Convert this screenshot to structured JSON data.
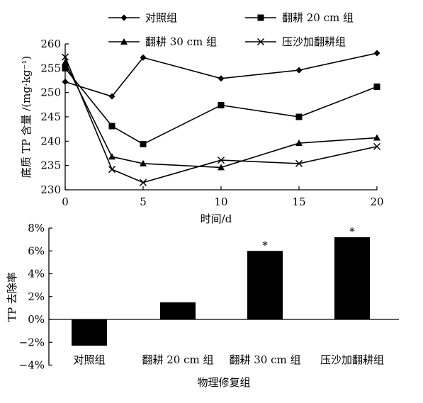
{
  "chart_data": [
    {
      "type": "line",
      "ylabel": "底质 TP 含量 /(mg·kg⁻¹)",
      "xlabel": "时间/d",
      "x": [
        0,
        3,
        5,
        10,
        15,
        20
      ],
      "xlim": [
        0,
        20
      ],
      "ylim": [
        230,
        260
      ],
      "xticks": [
        "0",
        "5",
        "10",
        "15",
        "20"
      ],
      "yticks": [
        "230",
        "235",
        "240",
        "245",
        "250",
        "255",
        "260"
      ],
      "legend_position": "top",
      "series": [
        {
          "name": "对照组",
          "marker": "diamond",
          "values": [
            252.2,
            249.2,
            257.2,
            252.9,
            254.6,
            258.1
          ]
        },
        {
          "name": "翻耕 20 cm 组",
          "marker": "square",
          "values": [
            255.0,
            243.1,
            239.4,
            247.4,
            245.0,
            251.2
          ]
        },
        {
          "name": "翻耕 30 cm 组",
          "marker": "triangle",
          "values": [
            256.2,
            236.8,
            235.4,
            234.6,
            239.6,
            240.7
          ]
        },
        {
          "name": "压沙加翻耕组",
          "marker": "x",
          "values": [
            257.3,
            234.2,
            231.5,
            236.1,
            235.4,
            238.9
          ]
        }
      ]
    },
    {
      "type": "bar",
      "ylabel": "TP 去除率",
      "xlabel": "物理修复组",
      "categories": [
        "对照组",
        "翻耕 20 cm 组",
        "翻耕 30 cm 组",
        "压沙加翻耕组"
      ],
      "values": [
        -2.3,
        1.5,
        6.0,
        7.2
      ],
      "unit": "%",
      "ylim": [
        -4,
        8
      ],
      "yticks": [
        "−4%",
        "−2%",
        "0%",
        "2%",
        "4%",
        "6%",
        "8%"
      ],
      "annotations": [
        "",
        "",
        "*",
        "*"
      ],
      "bar_color": "#000000"
    }
  ]
}
